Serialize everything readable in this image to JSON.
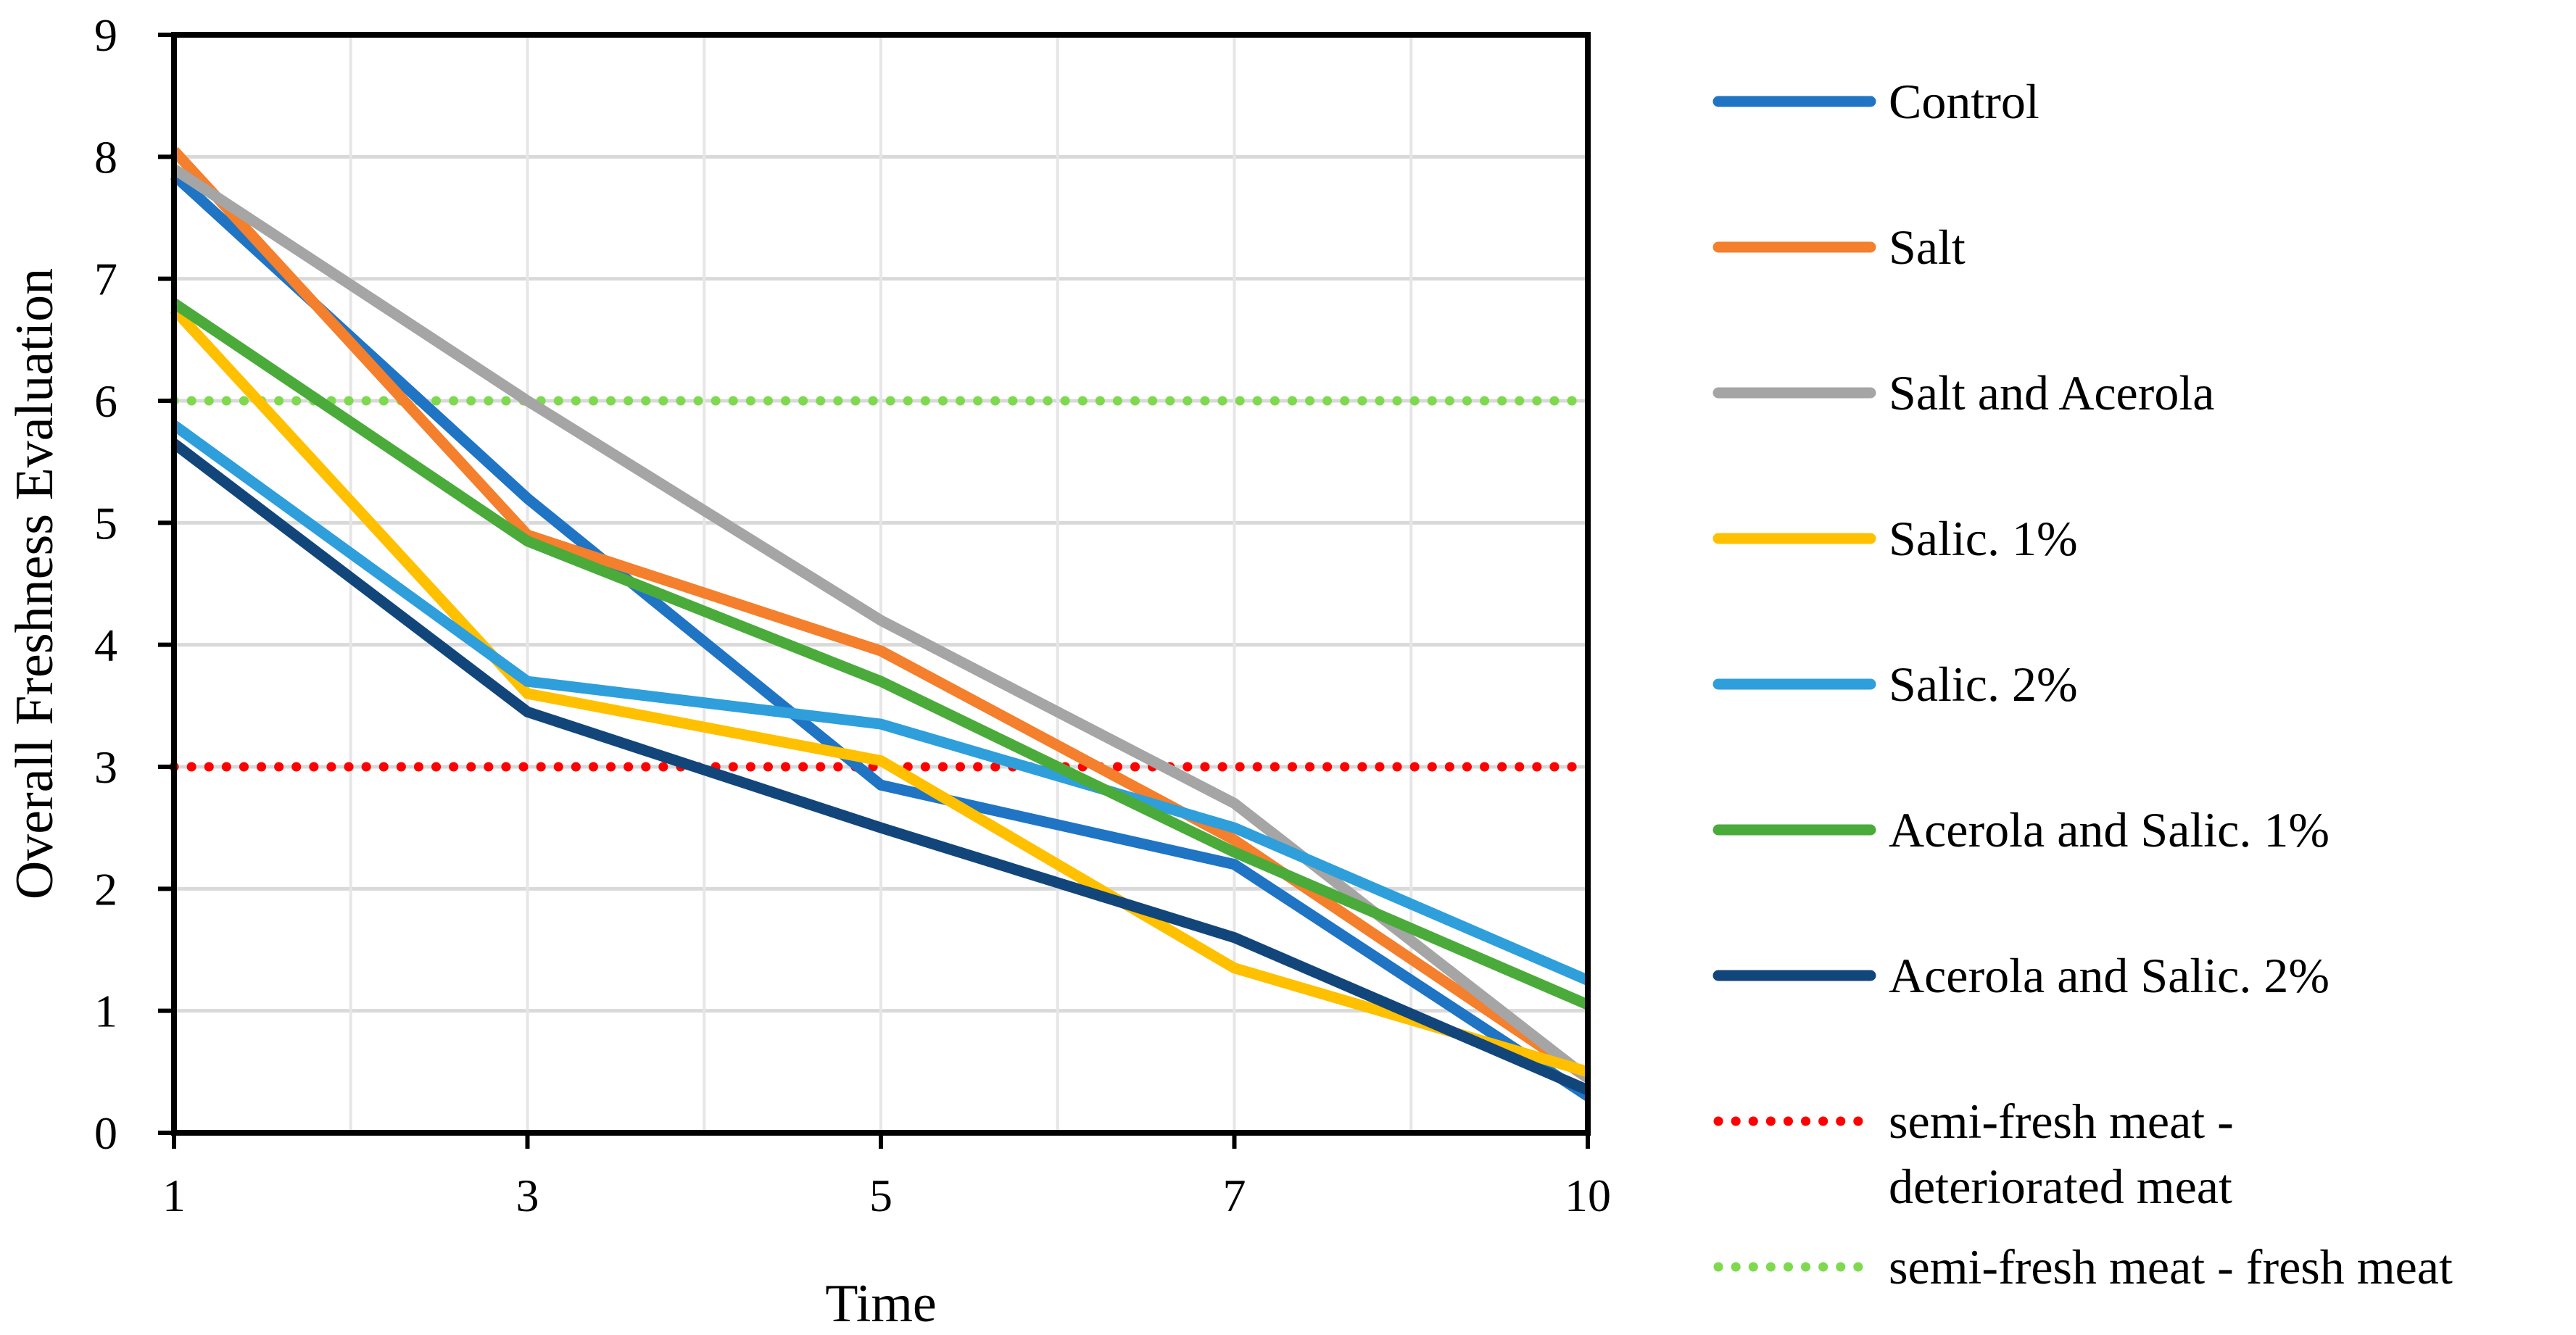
{
  "chart_data": {
    "type": "line",
    "title": "",
    "xlabel": "Time",
    "ylabel": "Overall Freshness Evaluation",
    "x_ticks": [
      "1",
      "3",
      "5",
      "7",
      "10"
    ],
    "y_ticks": [
      "0",
      "1",
      "2",
      "3",
      "4",
      "5",
      "6",
      "7",
      "8",
      "9"
    ],
    "ylim": [
      0,
      9
    ],
    "grid": true,
    "legend_position": "right",
    "series": [
      {
        "name": "Control",
        "color": "#1F74C4",
        "style": "solid",
        "values": [
          7.85,
          5.2,
          2.85,
          2.2,
          0.3
        ]
      },
      {
        "name": "Salt",
        "color": "#F47F2C",
        "style": "solid",
        "values": [
          8.05,
          4.9,
          3.95,
          2.4,
          0.45
        ]
      },
      {
        "name": "Salt and Acerola",
        "color": "#A5A5A5",
        "style": "solid",
        "values": [
          7.9,
          6.0,
          4.2,
          2.7,
          0.45
        ]
      },
      {
        "name": "Salic. 1%",
        "color": "#FFC000",
        "style": "solid",
        "values": [
          6.75,
          3.6,
          3.05,
          1.35,
          0.5
        ]
      },
      {
        "name": "Salic. 2%",
        "color": "#2E9FDA",
        "style": "solid",
        "values": [
          5.8,
          3.7,
          3.35,
          2.5,
          1.25
        ]
      },
      {
        "name": "Acerola and Salic. 1%",
        "color": "#4AAB3A",
        "style": "solid",
        "values": [
          6.8,
          4.85,
          3.7,
          2.3,
          1.05
        ]
      },
      {
        "name": "Acerola and Salic. 2%",
        "color": "#12467A",
        "style": "solid",
        "values": [
          5.65,
          3.45,
          2.5,
          1.6,
          0.35
        ]
      },
      {
        "name": "semi-fresh meat - deteriorated meat",
        "legend_lines": [
          "semi-fresh meat -",
          "deteriorated meat"
        ],
        "color": "#FF0000",
        "style": "dotted",
        "values": [
          3,
          3,
          3,
          3,
          3
        ]
      },
      {
        "name": "semi-fresh meat - fresh meat",
        "legend_lines": [
          "semi-fresh meat - fresh meat"
        ],
        "color": "#7FD94F",
        "style": "dotted",
        "values": [
          6,
          6,
          6,
          6,
          6
        ]
      }
    ]
  }
}
